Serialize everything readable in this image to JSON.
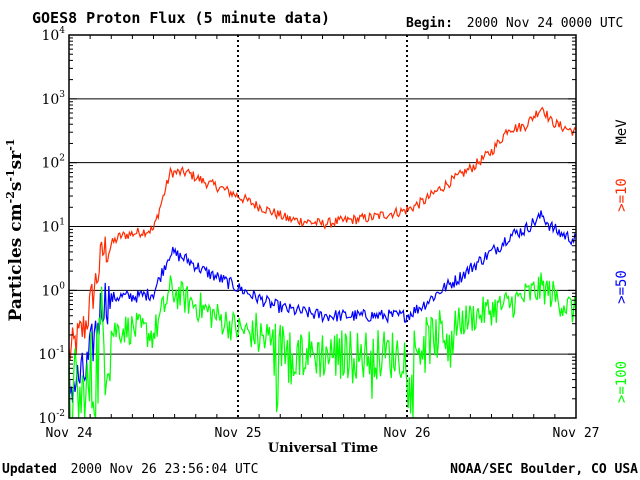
{
  "header": {
    "title": "GOES8 Proton Flux (5 minute data)",
    "begin_label": "Begin:",
    "begin_value": "2000 Nov 24 0000 UTC"
  },
  "footer": {
    "updated_label": "Updated",
    "updated_value": "2000 Nov 26 23:56:04 UTC",
    "source": "NOAA/SEC Boulder, CO USA"
  },
  "colors": {
    "ge10": "#ff2a00",
    "ge50": "#0000ff",
    "ge100": "#00ff00",
    "frame": "#000000"
  },
  "chart_data": {
    "type": "line",
    "title": "GOES8 Proton Flux (5 minute data)",
    "xlabel": "Universal Time",
    "ylabel": "Particles cm-2s-1sr-1",
    "yscale": "log",
    "ylim": [
      0.01,
      10000
    ],
    "xlim": [
      0,
      3
    ],
    "x_ticks": [
      {
        "x": 0,
        "label": "Nov 24"
      },
      {
        "x": 1,
        "label": "Nov 25"
      },
      {
        "x": 2,
        "label": "Nov 26"
      },
      {
        "x": 3,
        "label": "Nov 27"
      }
    ],
    "y_ticks": [
      {
        "value": 0.01,
        "base": "10",
        "exp": "-2"
      },
      {
        "value": 0.1,
        "base": "10",
        "exp": "-1"
      },
      {
        "value": 1,
        "base": "10",
        "exp": "0"
      },
      {
        "value": 10,
        "base": "10",
        "exp": "1"
      },
      {
        "value": 100,
        "base": "10",
        "exp": "2"
      },
      {
        "value": 1000,
        "base": "10",
        "exp": "3"
      },
      {
        "value": 10000,
        "base": "10",
        "exp": "4"
      }
    ],
    "grid": true,
    "unit_label": "MeV",
    "series": [
      {
        "name": ">=10",
        "color": "#ff2a00",
        "noise": 0.08,
        "x": [
          0,
          0.1,
          0.2,
          0.3,
          0.4,
          0.5,
          0.6,
          0.7,
          0.8,
          0.9,
          1.0,
          1.1,
          1.2,
          1.3,
          1.4,
          1.5,
          1.6,
          1.7,
          1.8,
          1.9,
          2.0,
          2.1,
          2.2,
          2.3,
          2.4,
          2.5,
          2.55,
          2.6,
          2.65,
          2.7,
          2.8,
          2.85,
          2.9,
          3.0
        ],
        "y": [
          0.1,
          0.3,
          4,
          7,
          8,
          9,
          70,
          70,
          50,
          40,
          30,
          22,
          17,
          13,
          12,
          11,
          12,
          13,
          14,
          16,
          18,
          25,
          40,
          60,
          90,
          150,
          220,
          350,
          350,
          380,
          750,
          450,
          380,
          300
        ]
      },
      {
        "name": ">=50",
        "color": "#0000ff",
        "noise": 0.1,
        "x": [
          0,
          0.1,
          0.2,
          0.3,
          0.4,
          0.5,
          0.6,
          0.7,
          0.8,
          0.9,
          1.0,
          1.1,
          1.2,
          1.3,
          1.4,
          1.5,
          1.6,
          1.7,
          1.8,
          1.9,
          2.0,
          2.1,
          2.2,
          2.3,
          2.4,
          2.5,
          2.55,
          2.6,
          2.65,
          2.7,
          2.8,
          2.85,
          2.9,
          3.0
        ],
        "y": [
          0.03,
          0.05,
          0.7,
          0.8,
          0.8,
          0.9,
          4,
          3,
          2,
          1.5,
          1.1,
          0.8,
          0.6,
          0.5,
          0.45,
          0.4,
          0.4,
          0.4,
          0.4,
          0.4,
          0.4,
          0.6,
          1,
          1.5,
          2.5,
          4,
          5,
          7,
          8,
          9,
          15,
          10,
          8,
          6
        ]
      },
      {
        "name": ">=100",
        "color": "#00ff00",
        "noise": 0.25,
        "x": [
          0,
          0.1,
          0.2,
          0.3,
          0.4,
          0.5,
          0.6,
          0.7,
          0.8,
          0.9,
          1.0,
          1.1,
          1.2,
          1.3,
          1.4,
          1.5,
          1.6,
          1.7,
          1.8,
          1.9,
          2.0,
          2.1,
          2.2,
          2.3,
          2.4,
          2.5,
          2.6,
          2.7,
          2.8,
          2.85,
          2.9,
          3.0
        ],
        "y": [
          0.015,
          0.015,
          0.2,
          0.25,
          0.25,
          0.2,
          1,
          0.7,
          0.5,
          0.35,
          0.25,
          0.2,
          0.15,
          0.12,
          0.1,
          0.1,
          0.1,
          0.1,
          0.1,
          0.1,
          0.1,
          0.15,
          0.2,
          0.3,
          0.4,
          0.5,
          0.6,
          0.8,
          1.1,
          0.9,
          0.7,
          0.45
        ]
      }
    ]
  }
}
